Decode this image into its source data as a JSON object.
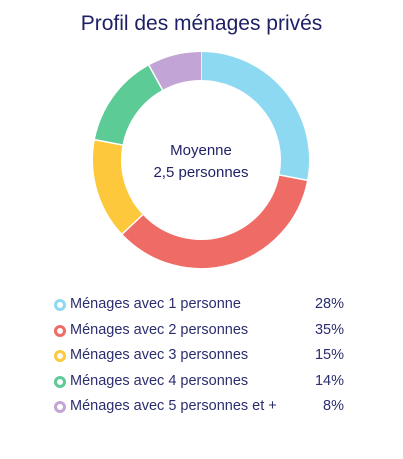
{
  "chart_data": {
    "type": "pie",
    "title": "Profil des ménages privés",
    "center_label": [
      "Moyenne",
      "2,5 personnes"
    ],
    "categories": [
      "Ménages avec 1 personne",
      "Ménages avec 2 personnes",
      "Ménages avec 3 personnes",
      "Ménages avec 4 personnes",
      "Ménages avec 5 personnes et +"
    ],
    "values": [
      28,
      35,
      15,
      14,
      8
    ],
    "value_labels": [
      "28%",
      "35%",
      "15%",
      "14%",
      "8%"
    ],
    "colors": [
      "#8ed9f2",
      "#ef6b65",
      "#fdc83c",
      "#5ccb95",
      "#c3a4d6"
    ],
    "legend_position": "bottom"
  }
}
